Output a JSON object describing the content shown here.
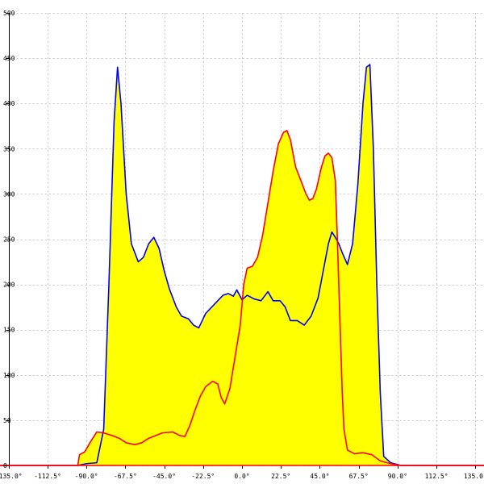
{
  "chart_data": {
    "type": "area",
    "title": "",
    "xlabel": "",
    "ylabel": "",
    "xlim": [
      -140,
      140
    ],
    "ylim": [
      0,
      500
    ],
    "grid": true,
    "x_ticks": [
      -135,
      -112.5,
      -90,
      -67.5,
      -45,
      -22.5,
      0,
      22.5,
      45,
      67.5,
      90,
      112.5,
      135
    ],
    "x_tick_labels": [
      "-135.0°",
      "-112.5°",
      "-90.0°",
      "-67.5°",
      "-45.0°",
      "-22.5°",
      "0.0°",
      "22.5°",
      "45.0°",
      "67.5°",
      "90.0°",
      "112.5°",
      "135.0°"
    ],
    "y_ticks": [
      0,
      50,
      100,
      150,
      200,
      250,
      300,
      350,
      400,
      450,
      500
    ],
    "y_tick_labels": [
      "0",
      "50",
      "100",
      "150",
      "200",
      "250",
      "300",
      "350",
      "400",
      "450",
      "500"
    ],
    "fill_color": "#ffff00",
    "series": [
      {
        "color": "#0000ff",
        "points": [
          [
            -140,
            0
          ],
          [
            -95,
            0
          ],
          [
            -90,
            2
          ],
          [
            -84,
            3
          ],
          [
            -80,
            40
          ],
          [
            -77,
            200
          ],
          [
            -74,
            380
          ],
          [
            -72,
            440
          ],
          [
            -70,
            400
          ],
          [
            -67,
            300
          ],
          [
            -64,
            245
          ],
          [
            -60,
            225
          ],
          [
            -57,
            230
          ],
          [
            -54,
            245
          ],
          [
            -51,
            252
          ],
          [
            -48,
            240
          ],
          [
            -45,
            215
          ],
          [
            -42,
            195
          ],
          [
            -38,
            175
          ],
          [
            -35,
            165
          ],
          [
            -31,
            162
          ],
          [
            -28,
            155
          ],
          [
            -25,
            152
          ],
          [
            -21,
            168
          ],
          [
            -16,
            178
          ],
          [
            -11,
            188
          ],
          [
            -8,
            190
          ],
          [
            -5,
            187
          ],
          [
            -3,
            194
          ],
          [
            0,
            183
          ],
          [
            3,
            188
          ],
          [
            7,
            184
          ],
          [
            11,
            182
          ],
          [
            15,
            192
          ],
          [
            18,
            182
          ],
          [
            22,
            182
          ],
          [
            25,
            175
          ],
          [
            28,
            160
          ],
          [
            32,
            160
          ],
          [
            36,
            155
          ],
          [
            40,
            165
          ],
          [
            44,
            185
          ],
          [
            47,
            215
          ],
          [
            50,
            245
          ],
          [
            52,
            258
          ],
          [
            54,
            252
          ],
          [
            56,
            245
          ],
          [
            58,
            235
          ],
          [
            61,
            222
          ],
          [
            64,
            245
          ],
          [
            67,
            310
          ],
          [
            70,
            400
          ],
          [
            72,
            440
          ],
          [
            74,
            443
          ],
          [
            76,
            350
          ],
          [
            78,
            200
          ],
          [
            80,
            80
          ],
          [
            82,
            10
          ],
          [
            86,
            3
          ],
          [
            92,
            0
          ],
          [
            140,
            0
          ]
        ]
      },
      {
        "color": "#ff0000",
        "points": [
          [
            -140,
            0
          ],
          [
            -95,
            0
          ],
          [
            -94,
            12
          ],
          [
            -91,
            15
          ],
          [
            -88,
            25
          ],
          [
            -84,
            37
          ],
          [
            -80,
            36
          ],
          [
            -75,
            33
          ],
          [
            -71,
            30
          ],
          [
            -67,
            25
          ],
          [
            -62,
            23
          ],
          [
            -58,
            25
          ],
          [
            -54,
            30
          ],
          [
            -50,
            33
          ],
          [
            -46,
            36
          ],
          [
            -40,
            37
          ],
          [
            -36,
            33
          ],
          [
            -33,
            32
          ],
          [
            -30,
            45
          ],
          [
            -27,
            62
          ],
          [
            -24,
            77
          ],
          [
            -21,
            87
          ],
          [
            -17,
            93
          ],
          [
            -14,
            90
          ],
          [
            -12,
            75
          ],
          [
            -10,
            68
          ],
          [
            -7,
            85
          ],
          [
            -4,
            120
          ],
          [
            -1,
            155
          ],
          [
            1,
            200
          ],
          [
            3,
            218
          ],
          [
            6,
            220
          ],
          [
            9,
            230
          ],
          [
            12,
            255
          ],
          [
            15,
            290
          ],
          [
            18,
            325
          ],
          [
            21,
            355
          ],
          [
            24,
            368
          ],
          [
            26,
            370
          ],
          [
            28,
            360
          ],
          [
            31,
            330
          ],
          [
            34,
            315
          ],
          [
            37,
            300
          ],
          [
            39,
            293
          ],
          [
            41,
            295
          ],
          [
            43,
            305
          ],
          [
            46,
            330
          ],
          [
            48,
            342
          ],
          [
            50,
            345
          ],
          [
            52,
            340
          ],
          [
            54,
            315
          ],
          [
            55,
            260
          ],
          [
            56,
            200
          ],
          [
            57,
            140
          ],
          [
            58,
            80
          ],
          [
            59,
            40
          ],
          [
            61,
            17
          ],
          [
            65,
            13
          ],
          [
            70,
            14
          ],
          [
            75,
            12
          ],
          [
            80,
            5
          ],
          [
            86,
            2
          ],
          [
            92,
            0
          ],
          [
            140,
            0
          ]
        ]
      }
    ]
  }
}
